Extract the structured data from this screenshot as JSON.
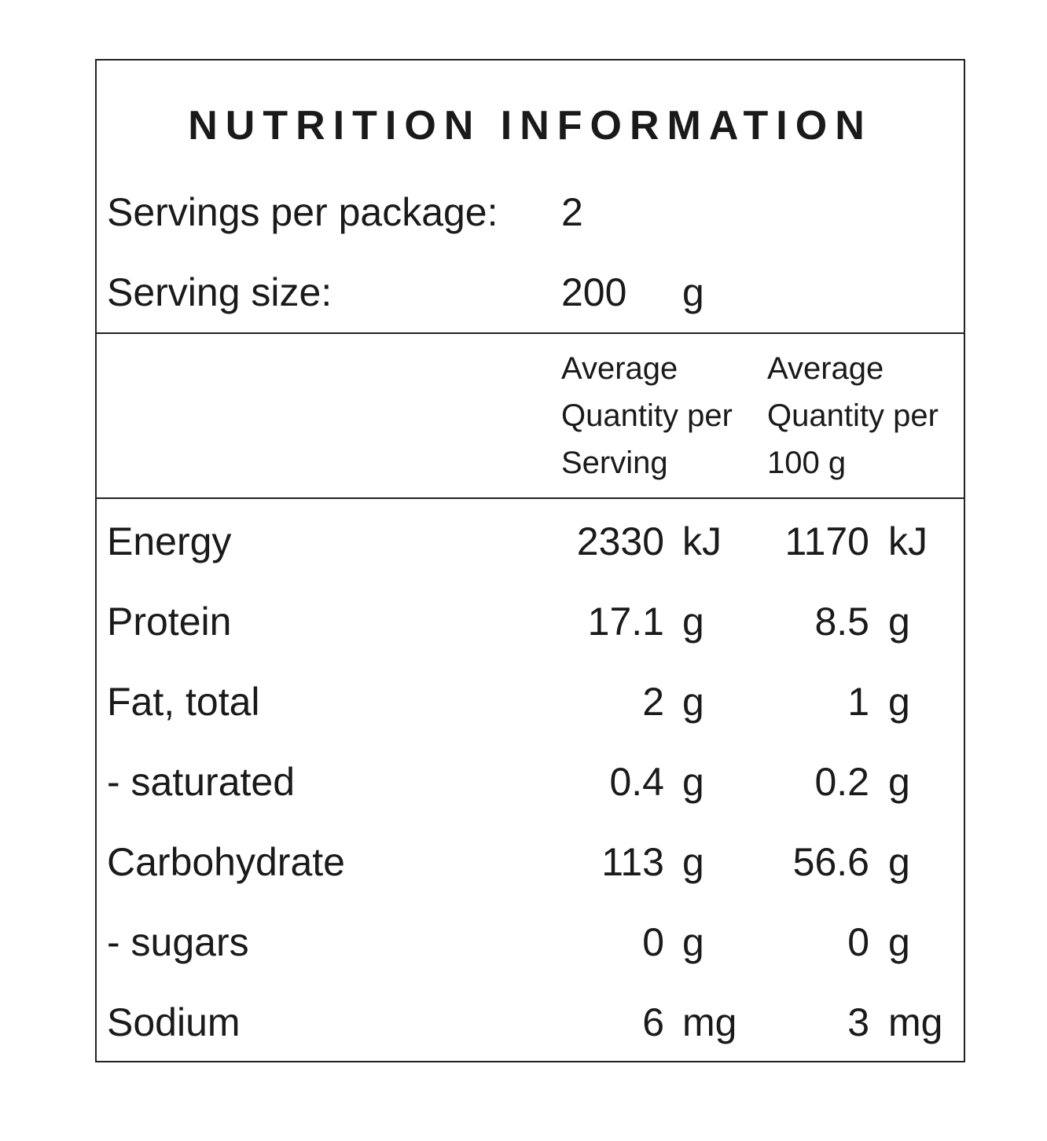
{
  "title": "NUTRITION INFORMATION",
  "servings_per_package": {
    "label": "Servings per package:",
    "value": "2"
  },
  "serving_size": {
    "label": "Serving size:",
    "value": "200",
    "unit": "g"
  },
  "columns": [
    [
      "Average",
      "Quantity per",
      "Serving"
    ],
    [
      "Average",
      "Quantity per",
      "100 g"
    ]
  ],
  "rows": [
    {
      "name": "Energy",
      "per_serving": "2330",
      "per_serving_unit": "kJ",
      "per_100g": "1170",
      "per_100g_unit": "kJ"
    },
    {
      "name": "Protein",
      "per_serving": "17.1",
      "per_serving_unit": "g",
      "per_100g": "8.5",
      "per_100g_unit": "g"
    },
    {
      "name": "Fat, total",
      "per_serving": "2",
      "per_serving_unit": "g",
      "per_100g": "1",
      "per_100g_unit": "g"
    },
    {
      "name": "- saturated",
      "per_serving": "0.4",
      "per_serving_unit": "g",
      "per_100g": "0.2",
      "per_100g_unit": "g"
    },
    {
      "name": "Carbohydrate",
      "per_serving": "113",
      "per_serving_unit": "g",
      "per_100g": "56.6",
      "per_100g_unit": "g"
    },
    {
      "name": "- sugars",
      "per_serving": "0",
      "per_serving_unit": "g",
      "per_100g": "0",
      "per_100g_unit": "g"
    },
    {
      "name": "Sodium",
      "per_serving": "6",
      "per_serving_unit": "mg",
      "per_100g": "3",
      "per_100g_unit": "mg"
    }
  ]
}
